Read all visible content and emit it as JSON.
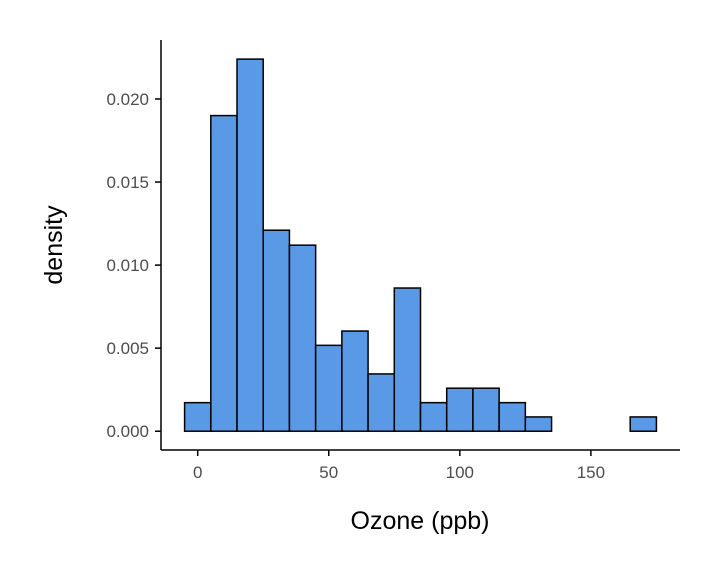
{
  "chart_data": {
    "type": "histogram",
    "xlabel": "Ozone (ppb)",
    "ylabel": "density",
    "bin_edges": [
      -5,
      5,
      15,
      25,
      35,
      45,
      55,
      65,
      75,
      85,
      95,
      105,
      115,
      125,
      135,
      145,
      155,
      165,
      175
    ],
    "values": [
      0.00172,
      0.019,
      0.0224,
      0.0121,
      0.0112,
      0.00517,
      0.00603,
      0.00345,
      0.00862,
      0.00172,
      0.00259,
      0.00259,
      0.00172,
      0.00086,
      0,
      0,
      0,
      0.00086
    ],
    "xlim": [
      -14,
      184
    ],
    "ylim": [
      -0.00113,
      0.02355
    ],
    "x_ticks": [
      0,
      50,
      100,
      150
    ],
    "x_tick_labels": [
      "0",
      "50",
      "100",
      "150"
    ],
    "y_ticks": [
      0,
      0.005,
      0.01,
      0.015,
      0.02
    ],
    "y_tick_labels": [
      "0.000",
      "0.005",
      "0.010",
      "0.015",
      "0.020"
    ],
    "grid": false,
    "colors": {
      "fill": "#5a99e6",
      "stroke": "#000000",
      "axis": "#000000",
      "tick_text": "#4d4d4d"
    }
  }
}
